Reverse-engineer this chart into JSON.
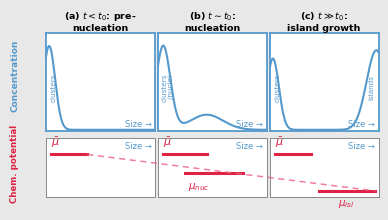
{
  "panel_titles": [
    "(a) $t < t_0$: pre-\nnucleation",
    "(b) $t\\sim t_0$:\nnucleation",
    "(c) $t \\gg t_0$:\nisland growth"
  ],
  "size_label": "Size →",
  "conc_label": "Concentration",
  "chem_label": "Chem. potential",
  "blue": "#5599cc",
  "red": "#dd2244",
  "pink_dashed": "#ee6688",
  "bg": "#ffffff",
  "outer_bg": "#e8e8e8"
}
